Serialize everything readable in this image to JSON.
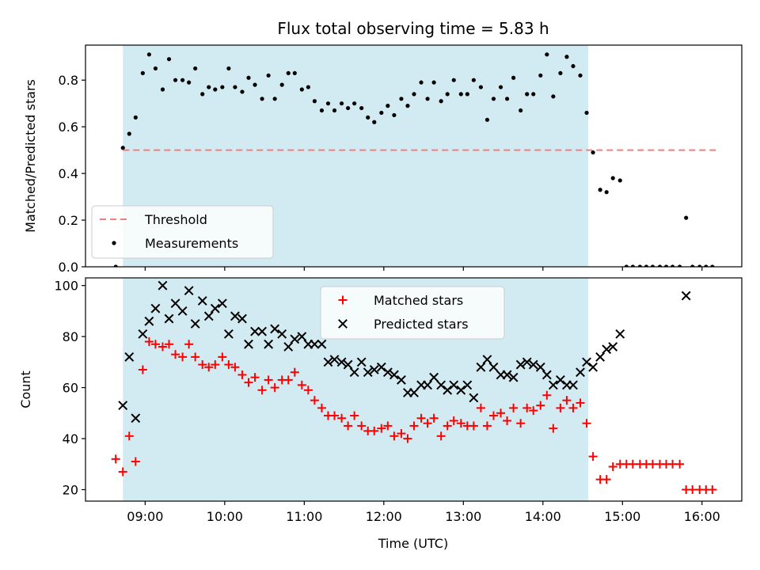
{
  "chart_data": {
    "type": "scatter",
    "title": "Flux total observing time = 5.83 h",
    "xlabel": "Time (UTC)",
    "x_unit": "hours UTC",
    "xlim": [
      8.25,
      16.5
    ],
    "xticks": [
      9,
      10,
      11,
      12,
      13,
      14,
      15,
      16
    ],
    "xtick_labels": [
      "09:00",
      "10:00",
      "11:00",
      "12:00",
      "13:00",
      "14:00",
      "15:00",
      "16:00"
    ],
    "observing_window": [
      8.72,
      14.57
    ],
    "colors": {
      "window": "#add8e6",
      "threshold": "#f08080",
      "matched": "#ff0000",
      "predicted": "#000000",
      "measurements": "#000000"
    },
    "panels": [
      {
        "ylabel": "Matched/Predicted stars",
        "ylim": [
          0,
          0.95
        ],
        "yticks": [
          0.0,
          0.2,
          0.4,
          0.6,
          0.8
        ],
        "ytick_labels": [
          "0.0",
          "0.2",
          "0.4",
          "0.6",
          "0.8"
        ],
        "legend": {
          "placement": "lower-left",
          "entries": [
            "Threshold",
            "Measurements"
          ]
        },
        "threshold": {
          "name": "Threshold",
          "value": 0.5,
          "x": [
            8.72,
            16.2
          ]
        },
        "series": [
          {
            "name": "Measurements",
            "marker": "dot",
            "x": [
              8.63,
              8.72,
              8.8,
              8.88,
              8.97,
              9.05,
              9.13,
              9.22,
              9.3,
              9.38,
              9.47,
              9.55,
              9.63,
              9.72,
              9.8,
              9.88,
              9.97,
              10.05,
              10.13,
              10.22,
              10.3,
              10.38,
              10.47,
              10.55,
              10.63,
              10.72,
              10.8,
              10.88,
              10.97,
              11.05,
              11.13,
              11.22,
              11.3,
              11.38,
              11.47,
              11.55,
              11.63,
              11.72,
              11.8,
              11.88,
              11.97,
              12.05,
              12.13,
              12.22,
              12.3,
              12.38,
              12.47,
              12.55,
              12.63,
              12.72,
              12.8,
              12.88,
              12.97,
              13.05,
              13.13,
              13.22,
              13.3,
              13.38,
              13.47,
              13.55,
              13.63,
              13.72,
              13.8,
              13.88,
              13.97,
              14.05,
              14.13,
              14.22,
              14.3,
              14.38,
              14.47,
              14.55,
              14.63,
              14.72,
              14.8,
              14.88,
              14.97,
              15.05,
              15.13,
              15.22,
              15.3,
              15.38,
              15.47,
              15.55,
              15.63,
              15.72,
              15.8,
              15.88,
              15.97,
              16.05,
              16.13
            ],
            "values": [
              0.0,
              0.51,
              0.57,
              0.64,
              0.83,
              0.91,
              0.85,
              0.76,
              0.89,
              0.8,
              0.8,
              0.79,
              0.85,
              0.74,
              0.77,
              0.76,
              0.77,
              0.85,
              0.77,
              0.75,
              0.81,
              0.78,
              0.72,
              0.82,
              0.72,
              0.78,
              0.83,
              0.83,
              0.76,
              0.77,
              0.71,
              0.67,
              0.7,
              0.67,
              0.7,
              0.68,
              0.7,
              0.68,
              0.64,
              0.62,
              0.66,
              0.69,
              0.65,
              0.72,
              0.69,
              0.74,
              0.79,
              0.72,
              0.79,
              0.71,
              0.74,
              0.8,
              0.74,
              0.74,
              0.8,
              0.77,
              0.63,
              0.72,
              0.77,
              0.72,
              0.81,
              0.67,
              0.74,
              0.74,
              0.82,
              0.91,
              0.73,
              0.83,
              0.9,
              0.86,
              0.82,
              0.66,
              0.49,
              0.33,
              0.32,
              0.38,
              0.37,
              0.0,
              0.0,
              0.0,
              0.0,
              0.0,
              0.0,
              0.0,
              0.0,
              0.0,
              0.21,
              0.0,
              0.0,
              0.0,
              0.0
            ]
          }
        ]
      },
      {
        "ylabel": "Count",
        "ylim": [
          15.5,
          103
        ],
        "yticks": [
          20,
          40,
          60,
          80,
          100
        ],
        "ytick_labels": [
          "20",
          "40",
          "60",
          "80",
          "100"
        ],
        "legend": {
          "placement": "top-center",
          "entries": [
            "Matched stars",
            "Predicted stars"
          ]
        },
        "series": [
          {
            "name": "Matched stars",
            "marker": "plus",
            "x": [
              8.63,
              8.72,
              8.8,
              8.88,
              8.97,
              9.05,
              9.13,
              9.22,
              9.3,
              9.38,
              9.47,
              9.55,
              9.63,
              9.72,
              9.8,
              9.88,
              9.97,
              10.05,
              10.13,
              10.22,
              10.3,
              10.38,
              10.47,
              10.55,
              10.63,
              10.72,
              10.8,
              10.88,
              10.97,
              11.05,
              11.13,
              11.22,
              11.3,
              11.38,
              11.47,
              11.55,
              11.63,
              11.72,
              11.8,
              11.88,
              11.97,
              12.05,
              12.13,
              12.22,
              12.3,
              12.38,
              12.47,
              12.55,
              12.63,
              12.72,
              12.8,
              12.88,
              12.97,
              13.05,
              13.13,
              13.22,
              13.3,
              13.38,
              13.47,
              13.55,
              13.63,
              13.72,
              13.8,
              13.88,
              13.97,
              14.05,
              14.13,
              14.22,
              14.3,
              14.38,
              14.47,
              14.55,
              14.63,
              14.72,
              14.8,
              14.88,
              14.97,
              15.05,
              15.13,
              15.22,
              15.3,
              15.38,
              15.47,
              15.55,
              15.63,
              15.72,
              15.8,
              15.88,
              15.97,
              16.05,
              16.13
            ],
            "values": [
              32,
              27,
              41,
              31,
              67,
              78,
              77,
              76,
              77,
              73,
              72,
              77,
              72,
              69,
              68,
              69,
              72,
              69,
              68,
              65,
              62,
              64,
              59,
              63,
              60,
              63,
              63,
              66,
              61,
              59,
              55,
              52,
              49,
              49,
              48,
              45,
              49,
              45,
              43,
              43,
              44,
              45,
              41,
              42,
              40,
              45,
              48,
              46,
              48,
              41,
              45,
              47,
              46,
              45,
              45,
              52,
              45,
              49,
              50,
              47,
              52,
              46,
              52,
              51,
              53,
              57,
              44,
              52,
              55,
              52,
              54,
              46,
              33,
              24,
              24,
              29,
              30,
              30,
              30,
              30,
              30,
              30,
              30,
              30,
              30,
              30,
              20,
              20,
              20,
              20,
              20
            ]
          },
          {
            "name": "Predicted stars",
            "marker": "x",
            "x": [
              8.72,
              8.8,
              8.88,
              8.97,
              9.05,
              9.13,
              9.22,
              9.3,
              9.38,
              9.47,
              9.55,
              9.63,
              9.72,
              9.8,
              9.88,
              9.97,
              10.05,
              10.13,
              10.22,
              10.3,
              10.38,
              10.47,
              10.55,
              10.63,
              10.72,
              10.8,
              10.88,
              10.97,
              11.05,
              11.13,
              11.22,
              11.3,
              11.38,
              11.47,
              11.55,
              11.63,
              11.72,
              11.8,
              11.88,
              11.97,
              12.05,
              12.13,
              12.22,
              12.3,
              12.38,
              12.47,
              12.55,
              12.63,
              12.72,
              12.8,
              12.88,
              12.97,
              13.05,
              13.13,
              13.22,
              13.3,
              13.38,
              13.47,
              13.55,
              13.63,
              13.72,
              13.8,
              13.88,
              13.97,
              14.05,
              14.13,
              14.22,
              14.3,
              14.38,
              14.47,
              14.55,
              14.63,
              14.72,
              14.8,
              14.88,
              14.97,
              15.8
            ],
            "values": [
              53,
              72,
              48,
              81,
              86,
              91,
              100,
              87,
              93,
              90,
              98,
              85,
              94,
              88,
              91,
              93,
              81,
              88,
              87,
              77,
              82,
              82,
              77,
              83,
              81,
              76,
              79,
              80,
              77,
              77,
              77,
              70,
              71,
              70,
              69,
              66,
              70,
              66,
              67,
              68,
              66,
              65,
              63,
              58,
              58,
              61,
              61,
              64,
              61,
              59,
              61,
              59,
              61,
              56,
              68,
              71,
              68,
              65,
              65,
              64,
              69,
              70,
              69,
              68,
              65,
              61,
              63,
              61,
              61,
              66,
              70,
              68,
              72,
              75,
              76,
              81,
              96
            ]
          }
        ]
      }
    ]
  }
}
